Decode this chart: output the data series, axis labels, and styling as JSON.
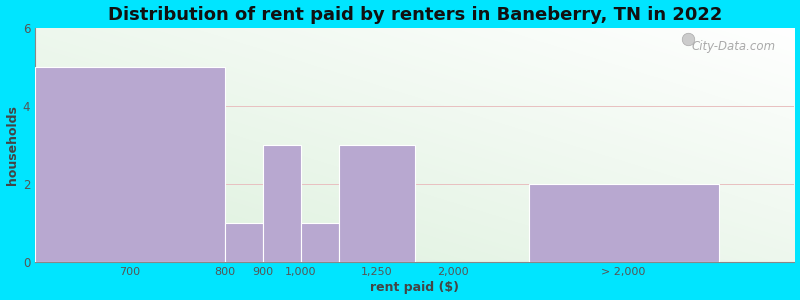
{
  "title": "Distribution of rent paid by renters in Baneberry, TN in 2022",
  "xlabel": "rent paid ($)",
  "ylabel": "households",
  "bar_heights": [
    5,
    1,
    3,
    1,
    3,
    2
  ],
  "bar_lefts": [
    0,
    5,
    6,
    7,
    8,
    13
  ],
  "bar_widths": [
    5,
    1,
    1,
    1,
    2,
    5
  ],
  "tick_positions": [
    2.5,
    5,
    6,
    7,
    9,
    11,
    15.5
  ],
  "tick_labels": [
    "700",
    "800",
    "900",
    "1,000",
    "1,250",
    "2,000",
    "> 2,000"
  ],
  "bar_color": "#b8a8d0",
  "grad_color_topleft": "#e8f5e8",
  "grad_color_bottomright": "#f5fff5",
  "outer_bg": "#00e5ff",
  "ylim": [
    0,
    6
  ],
  "xlim": [
    0,
    20
  ],
  "yticks": [
    0,
    2,
    4,
    6
  ],
  "title_fontsize": 13,
  "axis_label_fontsize": 9,
  "watermark_text": "City-Data.com"
}
